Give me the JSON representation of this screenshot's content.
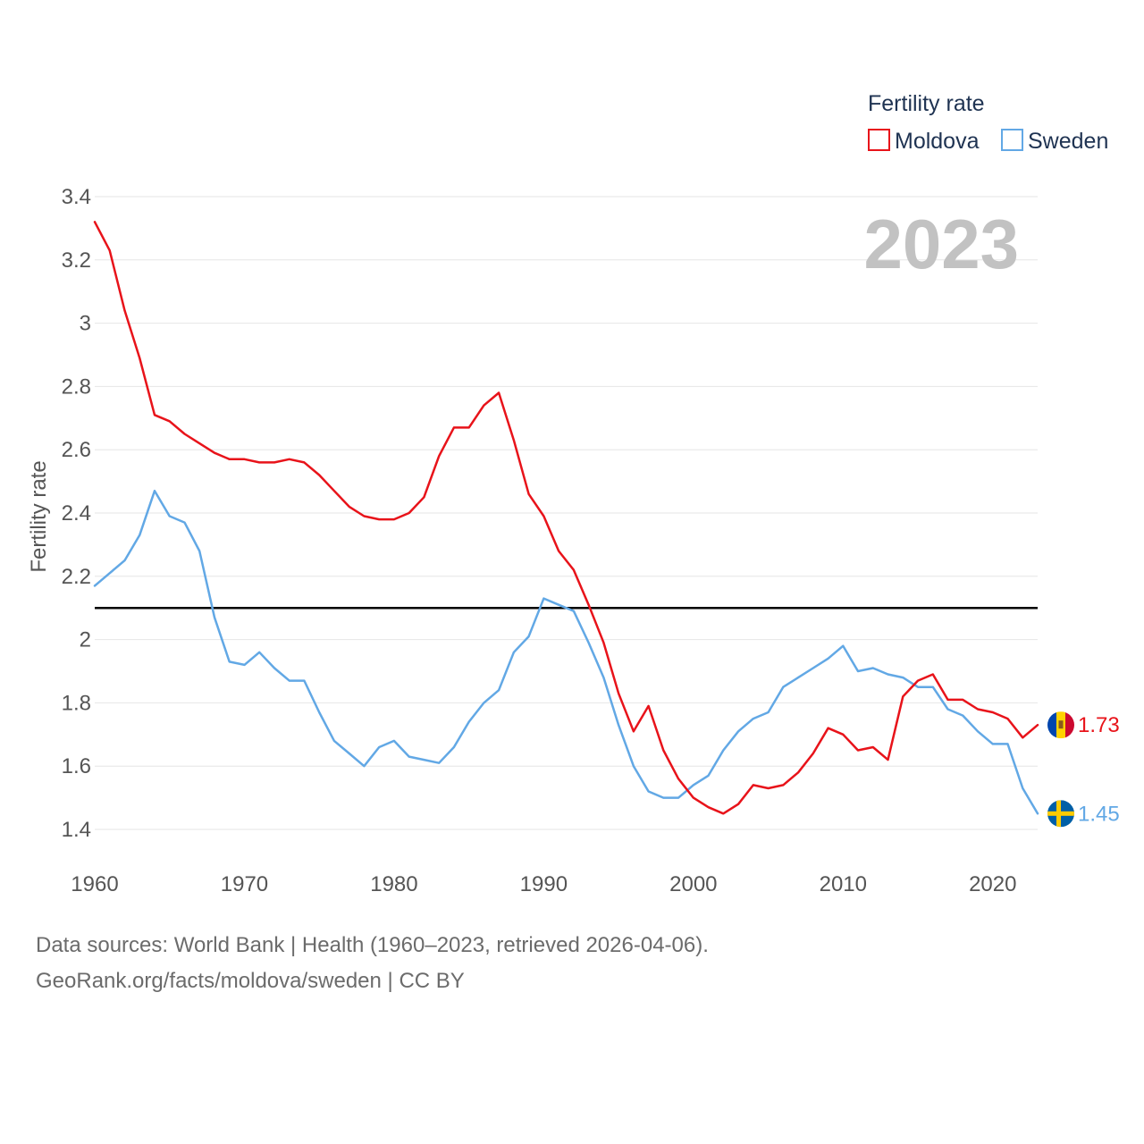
{
  "chart_data": {
    "type": "line",
    "year_label": "2023",
    "ylabel": "Fertility rate",
    "xlabel": "",
    "xlim": [
      1960,
      2023
    ],
    "ylim": [
      1.4,
      3.4
    ],
    "x_ticks": [
      1960,
      1970,
      1980,
      1990,
      2000,
      2010,
      2020
    ],
    "x_tick_labels": [
      "1960",
      "1970",
      "1980",
      "1990",
      "2000",
      "2010",
      "2020"
    ],
    "y_ticks": [
      1.4,
      1.6,
      1.8,
      2.0,
      2.2,
      2.4,
      2.6,
      2.8,
      3.0,
      3.2,
      3.4
    ],
    "y_tick_labels": [
      "1.4",
      "1.6",
      "1.8",
      "2",
      "2.2",
      "2.4",
      "2.6",
      "2.8",
      "3",
      "3.2",
      "3.4"
    ],
    "reference_line": {
      "y": 2.1,
      "color": "#000000"
    },
    "legend": {
      "title": "Fertility rate",
      "position": "top-right"
    },
    "x": [
      1960,
      1961,
      1962,
      1963,
      1964,
      1965,
      1966,
      1967,
      1968,
      1969,
      1970,
      1971,
      1972,
      1973,
      1974,
      1975,
      1976,
      1977,
      1978,
      1979,
      1980,
      1981,
      1982,
      1983,
      1984,
      1985,
      1986,
      1987,
      1988,
      1989,
      1990,
      1991,
      1992,
      1993,
      1994,
      1995,
      1996,
      1997,
      1998,
      1999,
      2000,
      2001,
      2002,
      2003,
      2004,
      2005,
      2006,
      2007,
      2008,
      2009,
      2010,
      2011,
      2012,
      2013,
      2014,
      2015,
      2016,
      2017,
      2018,
      2019,
      2020,
      2021,
      2022,
      2023
    ],
    "series": [
      {
        "name": "Moldova",
        "color": "#e8131a",
        "end_label": "1.73",
        "flag_icon": "moldova-flag-icon",
        "values": [
          3.32,
          3.23,
          3.04,
          2.89,
          2.71,
          2.69,
          2.65,
          2.62,
          2.59,
          2.57,
          2.57,
          2.56,
          2.56,
          2.57,
          2.56,
          2.52,
          2.47,
          2.42,
          2.39,
          2.38,
          2.38,
          2.4,
          2.45,
          2.58,
          2.67,
          2.67,
          2.74,
          2.78,
          2.63,
          2.46,
          2.39,
          2.28,
          2.22,
          2.11,
          1.99,
          1.83,
          1.71,
          1.79,
          1.65,
          1.56,
          1.5,
          1.47,
          1.45,
          1.48,
          1.54,
          1.53,
          1.54,
          1.58,
          1.64,
          1.72,
          1.7,
          1.65,
          1.66,
          1.62,
          1.82,
          1.87,
          1.89,
          1.81,
          1.81,
          1.78,
          1.77,
          1.75,
          1.69,
          1.73
        ]
      },
      {
        "name": "Sweden",
        "color": "#62a8e5",
        "end_label": "1.45",
        "flag_icon": "sweden-flag-icon",
        "values": [
          2.17,
          2.21,
          2.25,
          2.33,
          2.47,
          2.39,
          2.37,
          2.28,
          2.07,
          1.93,
          1.92,
          1.96,
          1.91,
          1.87,
          1.87,
          1.77,
          1.68,
          1.64,
          1.6,
          1.66,
          1.68,
          1.63,
          1.62,
          1.61,
          1.66,
          1.74,
          1.8,
          1.84,
          1.96,
          2.01,
          2.13,
          2.11,
          2.09,
          1.99,
          1.88,
          1.73,
          1.6,
          1.52,
          1.5,
          1.5,
          1.54,
          1.57,
          1.65,
          1.71,
          1.75,
          1.77,
          1.85,
          1.88,
          1.91,
          1.94,
          1.98,
          1.9,
          1.91,
          1.89,
          1.88,
          1.85,
          1.85,
          1.78,
          1.76,
          1.71,
          1.67,
          1.67,
          1.53,
          1.45
        ]
      }
    ]
  },
  "footer": {
    "source_line_1": "Data sources: World Bank | Health (1960–2023, retrieved 2026-04-06).",
    "source_line_2": "GeoRank.org/facts/moldova/sweden | CC BY"
  },
  "colors": {
    "moldova": "#e8131a",
    "sweden": "#62a8e5",
    "grid": "#e6e6e6",
    "tick_text": "#555555",
    "legend_text": "#1f3352",
    "year_label": "#c2c2c2"
  }
}
